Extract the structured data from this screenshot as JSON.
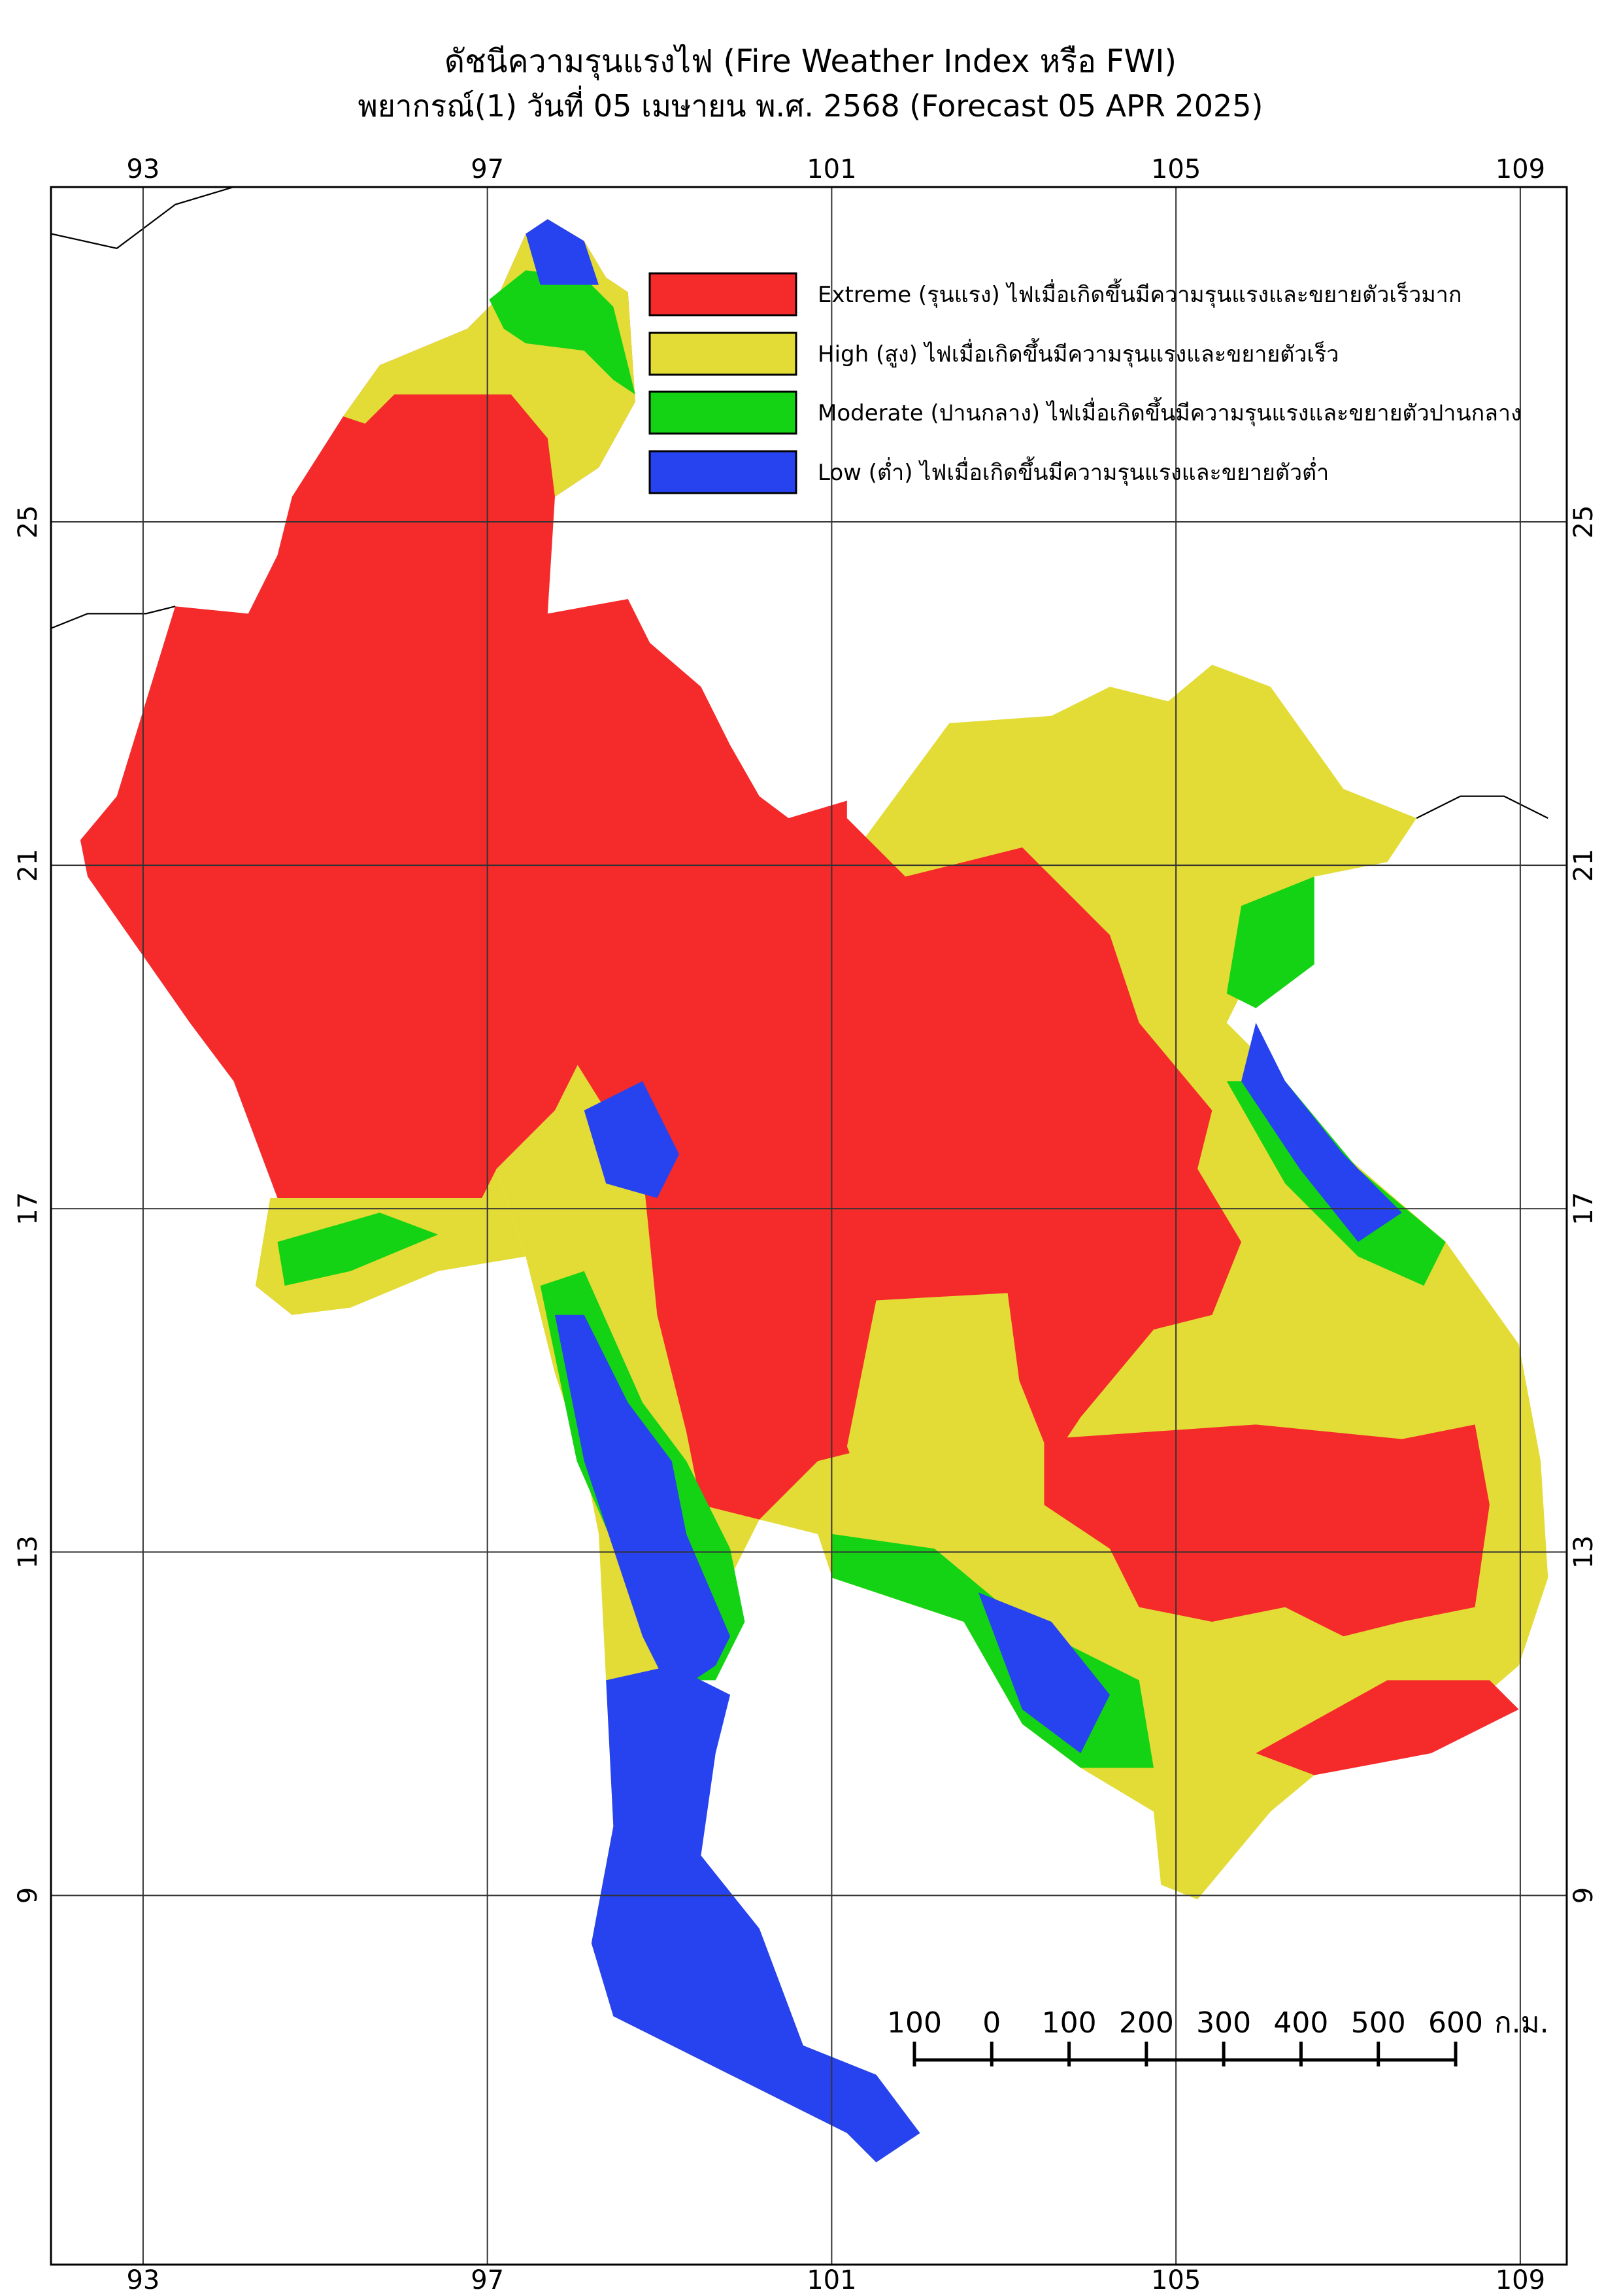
{
  "header": {
    "title": "ดัชนีความรุนแรงไฟ (Fire Weather Index หรือ FWI)",
    "subtitle": "พยากรณ์(1) วันที่ 05 เมษายน พ.ศ. 2568 (Forecast 05 APR 2025)"
  },
  "map": {
    "xlim": [
      91.93,
      109.54
    ],
    "ylim": [
      4.7,
      28.9
    ],
    "xticks": [
      93,
      97,
      101,
      105,
      109
    ],
    "yticks": [
      25,
      21,
      17,
      13,
      9
    ],
    "grid": true
  },
  "legend": [
    {
      "label": "Extreme (รุนแรง) ไฟเมื่อเกิดขึ้นมีความรุนแรงและขยายตัวเร็วมาก",
      "color": "#f52a2b"
    },
    {
      "label": "High (สูง) ไฟเมื่อเกิดขึ้นมีความรุนแรงและขยายตัวเร็ว",
      "color": "#e3db36"
    },
    {
      "label": "Moderate (ปานกลาง) ไฟเมื่อเกิดขึ้นมีความรุนแรงและขยายตัวปานกลาง",
      "color": "#14d314"
    },
    {
      "label": "Low (ต่ำ) ไฟเมื่อเกิดขึ้นมีความรุนแรงและขยายตัวต่ำ",
      "color": "#2643ef"
    }
  ],
  "scale_bar": {
    "xlim": [
      -100,
      600
    ],
    "ticks": [
      {
        "value": -100,
        "label": "100"
      },
      0,
      100,
      200,
      300,
      400,
      500,
      600
    ],
    "unit": "ก.ม."
  }
}
